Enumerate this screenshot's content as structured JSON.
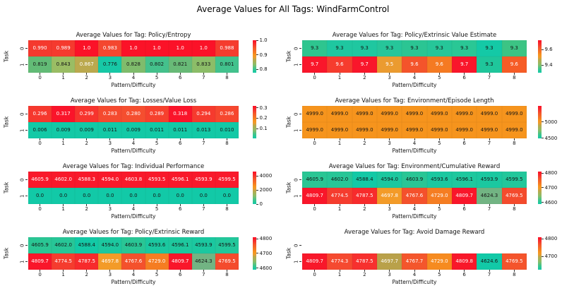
{
  "figure": {
    "title": "Average Values for All Tags: WindFarmControl"
  },
  "chart_data": [
    {
      "type": "heatmap",
      "title": "Average Values for Tag: Policy/Entropy",
      "xlabel": "Pattern/Difficulty",
      "ylabel": "Task",
      "row_labels": [
        "0",
        "1"
      ],
      "col_labels": [
        "0",
        "1",
        "2",
        "3",
        "4",
        "5",
        "6",
        "7",
        "8"
      ],
      "values": [
        [
          "0.990",
          "0.989",
          "1.0",
          "0.983",
          "1.0",
          "1.0",
          "1.0",
          "1.0",
          "0.988"
        ],
        [
          "0.819",
          "0.843",
          "0.867",
          "0.776",
          "0.828",
          "0.802",
          "0.821",
          "0.833",
          "0.801"
        ]
      ],
      "cell_colors": [
        [
          "#f5392e",
          "#f53a2e",
          "#fb1228",
          "#f4472f",
          "#fb1228",
          "#fb1228",
          "#fb1228",
          "#fb1228",
          "#f53c2e"
        ],
        [
          "#62bb76",
          "#9abd64",
          "#bba94e",
          "#17c8a6",
          "#7fbc6c",
          "#44c18c",
          "#68ba77",
          "#8cbd68",
          "#42c28d"
        ]
      ],
      "text_colors": [
        [
          "#ffffff",
          "#ffffff",
          "#ffffff",
          "#ffffff",
          "#ffffff",
          "#ffffff",
          "#ffffff",
          "#ffffff",
          "#ffffff"
        ],
        [
          "#151515",
          "#151515",
          "#ffffff",
          "#151515",
          "#151515",
          "#151515",
          "#151515",
          "#151515",
          "#151515"
        ]
      ],
      "colorbar": {
        "vmin": 0.776,
        "vmax": 1.0,
        "ticks": [
          {
            "label": "1.0",
            "value": 1.0
          },
          {
            "label": "0.9",
            "value": 0.9
          },
          {
            "label": "0.8",
            "value": 0.8
          }
        ]
      }
    },
    {
      "type": "heatmap",
      "title": "Average Values for Tag: Policy/Extrinsic Value Estimate",
      "xlabel": "Pattern/Difficulty",
      "ylabel": "Task",
      "row_labels": [
        "0",
        "1"
      ],
      "col_labels": [
        "0",
        "1",
        "2",
        "3",
        "4",
        "5",
        "6",
        "7",
        "8"
      ],
      "values": [
        [
          "9.3",
          "9.3",
          "9.3",
          "9.3",
          "9.3",
          "9.3",
          "9.3",
          "9.3",
          "9.3"
        ],
        [
          "9.7",
          "9.6",
          "9.7",
          "9.5",
          "9.6",
          "9.6",
          "9.7",
          "9.3",
          "9.6"
        ]
      ],
      "cell_colors": [
        [
          "#2ec58f",
          "#1fc7a0",
          "#1fc7a0",
          "#26c69a",
          "#2bc593",
          "#26c699",
          "#2ac795",
          "#14c9a6",
          "#3cc484"
        ],
        [
          "#f9162b",
          "#f63c2e",
          "#f9162b",
          "#eb9b30",
          "#f4542b",
          "#f57a22",
          "#f9162b",
          "#1fc69b",
          "#f65c26"
        ]
      ],
      "text_colors": [
        [
          "#151515",
          "#151515",
          "#151515",
          "#151515",
          "#151515",
          "#151515",
          "#151515",
          "#151515",
          "#151515"
        ],
        [
          "#ffffff",
          "#ffffff",
          "#ffffff",
          "#ffffff",
          "#ffffff",
          "#ffffff",
          "#ffffff",
          "#151515",
          "#ffffff"
        ]
      ],
      "colorbar": {
        "vmin": 9.3,
        "vmax": 9.72,
        "ticks": [
          {
            "label": "9.6",
            "value": 9.6
          },
          {
            "label": "9.4",
            "value": 9.4
          }
        ]
      }
    },
    {
      "type": "heatmap",
      "title": "Average Values for Tag: Losses/Value Loss",
      "xlabel": "Pattern/Difficulty",
      "ylabel": "Task",
      "row_labels": [
        "0",
        "1"
      ],
      "col_labels": [
        "0",
        "1",
        "2",
        "3",
        "4",
        "5",
        "6",
        "7",
        "8"
      ],
      "values": [
        [
          "0.296",
          "0.317",
          "0.299",
          "0.283",
          "0.280",
          "0.289",
          "0.318",
          "0.294",
          "0.286"
        ],
        [
          "0.006",
          "0.009",
          "0.009",
          "0.011",
          "0.009",
          "0.011",
          "0.011",
          "0.013",
          "0.010"
        ]
      ],
      "cell_colors": [
        [
          "#f6382e",
          "#fa142a",
          "#f7342e",
          "#f54a2f",
          "#f54e2f",
          "#f6412e",
          "#fa142a",
          "#f63a2e",
          "#f6472f"
        ],
        [
          "#13c9a6",
          "#13c9a6",
          "#13c9a6",
          "#13c9a6",
          "#13c9a6",
          "#13c9a6",
          "#13c9a6",
          "#13c9a6",
          "#13c9a6"
        ]
      ],
      "text_colors": [
        [
          "#ffffff",
          "#ffffff",
          "#ffffff",
          "#ffffff",
          "#ffffff",
          "#ffffff",
          "#ffffff",
          "#ffffff",
          "#ffffff"
        ],
        [
          "#151515",
          "#151515",
          "#151515",
          "#151515",
          "#151515",
          "#151515",
          "#151515",
          "#151515",
          "#151515"
        ]
      ],
      "colorbar": {
        "vmin": 0.006,
        "vmax": 0.318,
        "ticks": [
          {
            "label": "0.3",
            "value": 0.3
          },
          {
            "label": "0.2",
            "value": 0.2
          },
          {
            "label": "0.1",
            "value": 0.1
          }
        ]
      }
    },
    {
      "type": "heatmap",
      "title": "Average Values for Tag: Environment/Episode Length",
      "xlabel": "Pattern/Difficulty",
      "ylabel": "Task",
      "row_labels": [
        "0",
        "1"
      ],
      "col_labels": [
        "0",
        "1",
        "2",
        "3",
        "4",
        "5",
        "6",
        "7",
        "8"
      ],
      "values": [
        [
          "4999.0",
          "4999.0",
          "4999.0",
          "4999.0",
          "4999.0",
          "4999.0",
          "4999.0",
          "4999.0",
          "4999.0"
        ],
        [
          "4999.0",
          "4999.0",
          "4999.0",
          "4999.0",
          "4999.0",
          "4999.0",
          "4999.0",
          "4999.0",
          "4999.0"
        ]
      ],
      "cell_colors": [
        [
          "#f6941d",
          "#f6941d",
          "#f6941d",
          "#f6941d",
          "#f6941d",
          "#f6941d",
          "#f6941d",
          "#f6941d",
          "#f6941d"
        ],
        [
          "#f6941d",
          "#f6941d",
          "#f6941d",
          "#f6941d",
          "#f6941d",
          "#f6941d",
          "#f6941d",
          "#f6941d",
          "#f6941d"
        ]
      ],
      "text_colors": [
        [
          "#151515",
          "#151515",
          "#151515",
          "#151515",
          "#151515",
          "#151515",
          "#151515",
          "#151515",
          "#151515"
        ],
        [
          "#151515",
          "#151515",
          "#151515",
          "#151515",
          "#151515",
          "#151515",
          "#151515",
          "#151515",
          "#151515"
        ]
      ],
      "colorbar": {
        "vmin": 4499,
        "vmax": 5499,
        "ticks": [
          {
            "label": "5000",
            "value": 5000
          },
          {
            "label": "4500",
            "value": 4500
          }
        ]
      }
    },
    {
      "type": "heatmap",
      "title": "Average Values for Tag: Individual Performance",
      "xlabel": "Pattern/Difficulty",
      "ylabel": "Task",
      "row_labels": [
        "0",
        "1"
      ],
      "col_labels": [
        "0",
        "1",
        "2",
        "3",
        "4",
        "5",
        "6",
        "7",
        "8"
      ],
      "values": [
        [
          "4605.9",
          "4602.0",
          "4588.3",
          "4594.0",
          "4603.8",
          "4593.5",
          "4596.1",
          "4593.9",
          "4599.5"
        ],
        [
          "0.0",
          "0.0",
          "0.0",
          "0.0",
          "0.0",
          "0.0",
          "0.0",
          "0.0",
          "0.0"
        ]
      ],
      "cell_colors": [
        [
          "#f9192b",
          "#f9192b",
          "#f9192b",
          "#f9192b",
          "#f9192b",
          "#f9192b",
          "#f9192b",
          "#f9192b",
          "#f9192b"
        ],
        [
          "#12c9a7",
          "#12c9a7",
          "#12c9a7",
          "#12c9a7",
          "#12c9a7",
          "#12c9a7",
          "#12c9a7",
          "#12c9a7",
          "#12c9a7"
        ]
      ],
      "text_colors": [
        [
          "#ffffff",
          "#ffffff",
          "#ffffff",
          "#ffffff",
          "#ffffff",
          "#ffffff",
          "#ffffff",
          "#ffffff",
          "#ffffff"
        ],
        [
          "#151515",
          "#151515",
          "#151515",
          "#151515",
          "#151515",
          "#151515",
          "#151515",
          "#151515",
          "#151515"
        ]
      ],
      "colorbar": {
        "vmin": 0,
        "vmax": 4605.9,
        "ticks": [
          {
            "label": "4000",
            "value": 4000
          },
          {
            "label": "2000",
            "value": 2000
          },
          {
            "label": "0",
            "value": 0
          }
        ]
      }
    },
    {
      "type": "heatmap",
      "title": "Average Values for Tag: Environment/Cumulative Reward",
      "xlabel": "Pattern/Difficulty",
      "ylabel": "Task",
      "row_labels": [
        "0",
        "1"
      ],
      "col_labels": [
        "0",
        "1",
        "2",
        "3",
        "4",
        "5",
        "6",
        "7",
        "8"
      ],
      "values": [
        [
          "4605.9",
          "4602.0",
          "4588.4",
          "4594.0",
          "4603.9",
          "4593.6",
          "4596.1",
          "4593.9",
          "4599.5"
        ],
        [
          "4809.7",
          "4774.5",
          "4787.5",
          "4697.8",
          "4767.6",
          "4729.0",
          "4809.7",
          "4624.3",
          "4769.5"
        ]
      ],
      "cell_colors": [
        [
          "#2ac694",
          "#27c697",
          "#13c9a6",
          "#1cc89f",
          "#29c695",
          "#1bc8a0",
          "#1ec89e",
          "#1bc8a0",
          "#22c79b"
        ],
        [
          "#f9162a",
          "#f53c2e",
          "#f72b2c",
          "#f39b28",
          "#f4512c",
          "#f57d22",
          "#f9162a",
          "#72b483",
          "#f44b2d"
        ]
      ],
      "text_colors": [
        [
          "#151515",
          "#151515",
          "#151515",
          "#151515",
          "#151515",
          "#151515",
          "#151515",
          "#151515",
          "#151515"
        ],
        [
          "#ffffff",
          "#ffffff",
          "#ffffff",
          "#ffffff",
          "#ffffff",
          "#ffffff",
          "#ffffff",
          "#151515",
          "#ffffff"
        ]
      ],
      "colorbar": {
        "vmin": 4588.3,
        "vmax": 4809.7,
        "ticks": [
          {
            "label": "4800",
            "value": 4800
          },
          {
            "label": "4700",
            "value": 4700
          },
          {
            "label": "4600",
            "value": 4600
          }
        ]
      }
    },
    {
      "type": "heatmap",
      "title": "Average Values for Tag: Policy/Extrinsic Reward",
      "xlabel": "Pattern/Difficulty",
      "ylabel": "Task",
      "row_labels": [
        "0",
        "1"
      ],
      "col_labels": [
        "0",
        "1",
        "2",
        "3",
        "4",
        "5",
        "6",
        "7",
        "8"
      ],
      "values": [
        [
          "4605.9",
          "4602.0",
          "4588.4",
          "4594.0",
          "4603.9",
          "4593.6",
          "4596.1",
          "4593.9",
          "4599.5"
        ],
        [
          "4809.7",
          "4774.5",
          "4787.5",
          "4697.8",
          "4767.6",
          "4729.0",
          "4809.7",
          "4624.3",
          "4769.5"
        ]
      ],
      "cell_colors": [
        [
          "#2ac694",
          "#27c697",
          "#13c9a6",
          "#1cc89f",
          "#29c695",
          "#1bc8a0",
          "#1ec89e",
          "#1bc8a0",
          "#22c79b"
        ],
        [
          "#f9162a",
          "#f53c2e",
          "#f72b2c",
          "#f39b28",
          "#f4512c",
          "#f57d22",
          "#f9162a",
          "#72b483",
          "#f44b2d"
        ]
      ],
      "text_colors": [
        [
          "#151515",
          "#151515",
          "#151515",
          "#151515",
          "#151515",
          "#151515",
          "#151515",
          "#151515",
          "#151515"
        ],
        [
          "#ffffff",
          "#ffffff",
          "#ffffff",
          "#ffffff",
          "#ffffff",
          "#ffffff",
          "#ffffff",
          "#151515",
          "#ffffff"
        ]
      ],
      "colorbar": {
        "vmin": 4588.3,
        "vmax": 4809.7,
        "ticks": [
          {
            "label": "4800",
            "value": 4800
          },
          {
            "label": "4700",
            "value": 4700
          },
          {
            "label": "4600",
            "value": 4600
          }
        ]
      }
    },
    {
      "type": "heatmap",
      "title": "Average Values for Tag: Avoid Damage Reward",
      "xlabel": "Pattern/Difficulty",
      "ylabel": "Task",
      "row_labels": [
        "0",
        "1"
      ],
      "col_labels": [
        "0",
        "1",
        "2",
        "3",
        "4",
        "5",
        "6",
        "7",
        "8"
      ],
      "values": [
        [
          "",
          "",
          "",
          "",
          "",
          "",
          "",
          "",
          ""
        ],
        [
          "4809.7",
          "4774.3",
          "4787.5",
          "4697.7",
          "4767.7",
          "4729.0",
          "4809.8",
          "4624.6",
          "4769.5"
        ]
      ],
      "cell_colors": [
        [
          null,
          null,
          null,
          null,
          null,
          null,
          null,
          null,
          null
        ],
        [
          "#f8182a",
          "#f54a30",
          "#f7302e",
          "#b9a14a",
          "#f4562c",
          "#f68b20",
          "#f8182a",
          "#12c9a7",
          "#f4542c"
        ]
      ],
      "text_colors": [
        [
          null,
          null,
          null,
          null,
          null,
          null,
          null,
          null,
          null
        ],
        [
          "#ffffff",
          "#ffffff",
          "#ffffff",
          "#ffffff",
          "#ffffff",
          "#ffffff",
          "#ffffff",
          "#151515",
          "#ffffff"
        ]
      ],
      "colorbar": {
        "vmin": 4624.6,
        "vmax": 4809.8,
        "ticks": [
          {
            "label": "4800",
            "value": 4800
          },
          {
            "label": "4700",
            "value": 4700
          }
        ]
      }
    }
  ]
}
